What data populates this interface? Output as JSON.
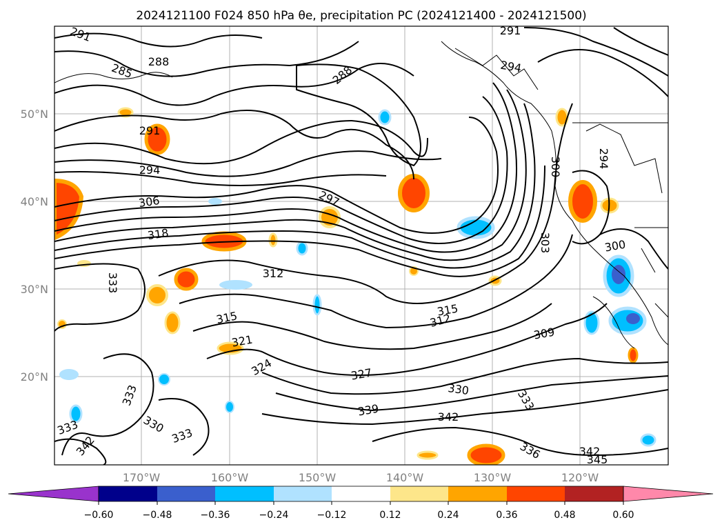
{
  "title": "2024121100 F024 850 hPa θe, precipitation PC (2024121400 - 2024121500)",
  "map": {
    "lat_labels": [
      "50°N",
      "40°N",
      "30°N",
      "20°N"
    ],
    "lon_labels": [
      "170°W",
      "160°W",
      "150°W",
      "140°W",
      "130°W",
      "120°W"
    ],
    "contour_labels": [
      "291",
      "288",
      "285",
      "291",
      "294",
      "306",
      "318",
      "333",
      "312",
      "315",
      "321",
      "324",
      "327",
      "330",
      "339",
      "342",
      "333",
      "336",
      "342",
      "345",
      "309",
      "312",
      "315",
      "300",
      "303",
      "300",
      "294",
      "291",
      "294",
      "288",
      "297",
      "333",
      "330",
      "333",
      "342",
      "333"
    ]
  },
  "colorbar": {
    "ticks": [
      "−0.60",
      "−0.48",
      "−0.36",
      "−0.24",
      "−0.12",
      "0.12",
      "0.24",
      "0.36",
      "0.48",
      "0.60"
    ],
    "colors": [
      "#9933cc",
      "#00008b",
      "#3a5fcd",
      "#00bfff",
      "#b0e2ff",
      "#ffffff",
      "#fde68a",
      "#ffa500",
      "#ff4500",
      "#b22222",
      "#ff88aa"
    ]
  }
}
